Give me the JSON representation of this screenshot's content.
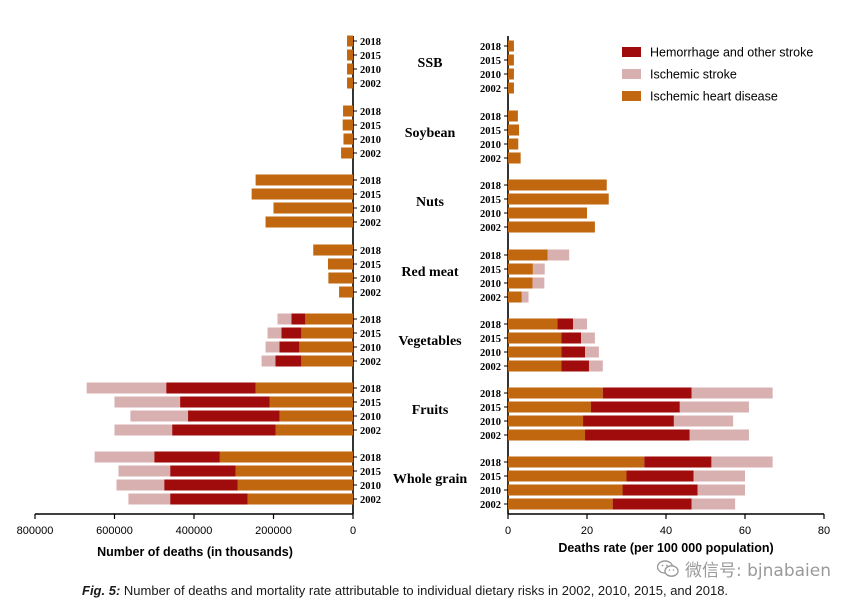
{
  "colors": {
    "ischemic_heart_disease": "#c0670f",
    "hemorrhage": "#a00b0b",
    "ischemic_stroke": "#d9b0b0",
    "axis": "#000000"
  },
  "caption": {
    "label": "Fig. 5:",
    "text": " Number of deaths and mortality rate attributable to individual dietary risks in 2002, 2010, 2015, and 2018."
  },
  "watermark": {
    "icon": "wechat-icon",
    "text": "微信号: bjnabaien"
  },
  "chart_data": [
    {
      "type": "bar",
      "orientation": "horizontal-stacked",
      "xlabel": "Number of deaths (in thousands)",
      "xlim": [
        800000,
        0
      ],
      "xticks": [
        "800000",
        "600000",
        "400000",
        "200000",
        "0"
      ],
      "groups": [
        "SSB",
        "Soybean",
        "Nuts",
        "Red meat",
        "Vegetables",
        "Fruits",
        "Whole grain"
      ],
      "years": [
        "2018",
        "2015",
        "2010",
        "2002"
      ],
      "series": [
        {
          "name": "Ischemic heart disease",
          "values": [
            [
              15000,
              15000,
              15000,
              15000
            ],
            [
              25000,
              26000,
              24000,
              30000
            ],
            [
              245000,
              255000,
              200000,
              220000
            ],
            [
              100000,
              63000,
              62000,
              35000
            ],
            [
              120000,
              130000,
              135000,
              130000
            ],
            [
              245000,
              210000,
              185000,
              195000
            ],
            [
              335000,
              295000,
              290000,
              265000
            ]
          ]
        },
        {
          "name": "Hemorrhage and other stroke",
          "values": [
            [
              0,
              0,
              0,
              0
            ],
            [
              0,
              0,
              0,
              0
            ],
            [
              0,
              0,
              0,
              0
            ],
            [
              0,
              0,
              0,
              0
            ],
            [
              35000,
              50000,
              50000,
              65000
            ],
            [
              225000,
              225000,
              230000,
              260000
            ],
            [
              165000,
              165000,
              185000,
              195000
            ]
          ]
        },
        {
          "name": "Ischemic stroke",
          "values": [
            [
              0,
              0,
              0,
              0
            ],
            [
              0,
              0,
              0,
              0
            ],
            [
              0,
              0,
              0,
              0
            ],
            [
              0,
              0,
              0,
              0
            ],
            [
              35000,
              35000,
              35000,
              35000
            ],
            [
              200000,
              165000,
              145000,
              145000
            ],
            [
              150000,
              130000,
              120000,
              105000
            ]
          ]
        }
      ]
    },
    {
      "type": "bar",
      "orientation": "horizontal-stacked",
      "xlabel": "Deaths rate (per 100 000 population)",
      "xlim": [
        0,
        80
      ],
      "xticks": [
        "0",
        "20",
        "40",
        "60",
        "80"
      ],
      "groups": [
        "SSB",
        "Soybean",
        "Nuts",
        "Red meat",
        "Vegetables",
        "Fruits",
        "Whole grain"
      ],
      "years": [
        "2018",
        "2015",
        "2010",
        "2002"
      ],
      "legend_position": "top-right",
      "series": [
        {
          "name": "Hemorrhage and other stroke",
          "values": [
            [
              0,
              0,
              0,
              0
            ],
            [
              0,
              0,
              0,
              0
            ],
            [
              0,
              0,
              0,
              0
            ],
            [
              0,
              0,
              0,
              0
            ],
            [
              4,
              5,
              6,
              7
            ],
            [
              22.5,
              22.5,
              23,
              26.5
            ],
            [
              17,
              17,
              19,
              20
            ]
          ]
        },
        {
          "name": "Ischemic stroke",
          "values": [
            [
              0,
              0,
              0,
              0
            ],
            [
              0,
              0,
              0,
              0
            ],
            [
              0,
              0,
              0,
              0
            ],
            [
              5.5,
              3,
              3,
              1.7
            ],
            [
              3.5,
              3.5,
              3.5,
              3.5
            ],
            [
              20.5,
              17.5,
              15,
              15
            ],
            [
              15.5,
              13,
              12,
              11
            ]
          ]
        },
        {
          "name": "Ischemic heart disease",
          "values": [
            [
              1.5,
              1.5,
              1.5,
              1.5
            ],
            [
              2.5,
              2.8,
              2.6,
              3.2
            ],
            [
              25,
              25.5,
              20,
              22
            ],
            [
              10,
              6.3,
              6.2,
              3.5
            ],
            [
              12.5,
              13.5,
              13.5,
              13.5
            ],
            [
              24,
              21,
              19,
              19.5
            ],
            [
              34.5,
              30,
              29,
              26.5
            ]
          ]
        }
      ]
    }
  ]
}
